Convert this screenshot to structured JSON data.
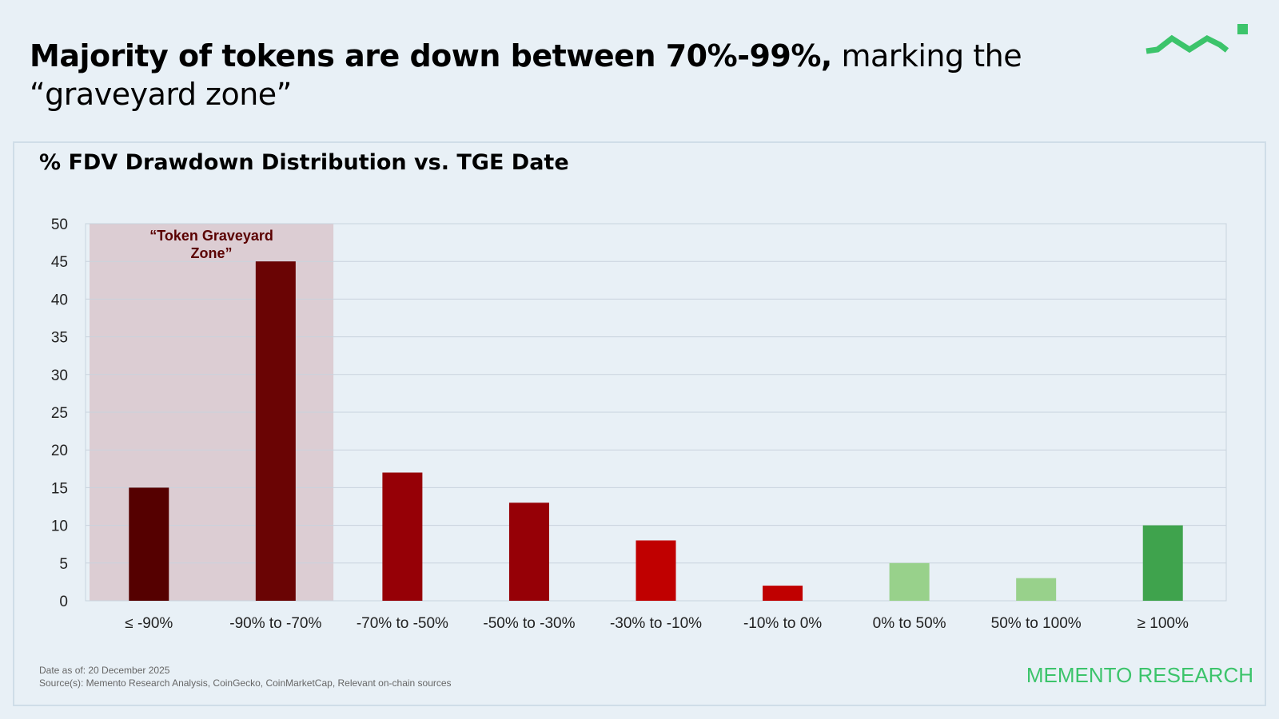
{
  "headline": {
    "bold": "Majority of tokens are down between 70%-99%,",
    "rest": " marking the “graveyard zone”"
  },
  "brand": "MEMENTO RESEARCH",
  "footnotes": {
    "date": "Date as of: 20 December 2025",
    "sources": "Source(s): Memento Research Analysis, CoinGecko, CoinMarketCap, Relevant on-chain sources"
  },
  "colors": {
    "background": "#e8f0f6",
    "brand_green": "#3cc46b",
    "graveyard_zone": "#dccdd3"
  },
  "chart_data": {
    "type": "bar",
    "title": "% FDV Drawdown Distribution vs. TGE Date",
    "xlabel": "",
    "ylabel": "",
    "categories": [
      "≤ -90%",
      "-90% to -70%",
      "-70% to -50%",
      "-50% to -30%",
      "-30% to -10%",
      "-10% to 0%",
      "0% to 50%",
      "50% to 100%",
      "≥ 100%"
    ],
    "values": [
      15,
      45,
      17,
      13,
      8,
      2,
      5,
      3,
      10
    ],
    "bar_colors": [
      "#550000",
      "#6a0404",
      "#960006",
      "#960006",
      "#c00000",
      "#c00000",
      "#98d18b",
      "#98d18b",
      "#3fa34d"
    ],
    "ylim": [
      0,
      50
    ],
    "yticks": [
      0,
      5,
      10,
      15,
      20,
      25,
      30,
      35,
      40,
      45,
      50
    ],
    "grid": true,
    "annotation": {
      "text": "“Token Graveyard Zone”",
      "spans_categories": [
        "≤ -90%",
        "-90% to -70%"
      ]
    }
  }
}
